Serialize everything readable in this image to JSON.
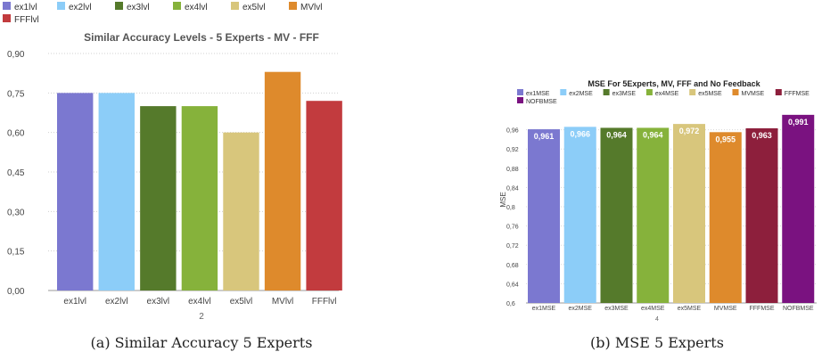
{
  "charts": {
    "left": {
      "caption": "(a) Similar Accuracy 5 Experts",
      "chart_data": {
        "type": "bar",
        "title": "Similar Accuracy Levels - 5 Experts - MV - FFF",
        "xlabel": "2",
        "ylabel": "",
        "ylim": [
          0,
          0.9
        ],
        "yticks": [
          "0,00",
          "0,15",
          "0,30",
          "0,45",
          "0,60",
          "0,75",
          "0,90"
        ],
        "ytick_values": [
          0,
          0.15,
          0.3,
          0.45,
          0.6,
          0.75,
          0.9
        ],
        "categories": [
          "ex1lvl",
          "ex2lvl",
          "ex3lvl",
          "ex4lvl",
          "ex5lvl",
          "MVlvl",
          "FFFlvl"
        ],
        "values": [
          0.75,
          0.75,
          0.7,
          0.7,
          0.6,
          0.83,
          0.72
        ],
        "colors": [
          "#7b78d0",
          "#8ccdf8",
          "#557a2b",
          "#86b23b",
          "#d8c67c",
          "#de8a2c",
          "#c23b3e"
        ],
        "legend": [
          "ex1lvl",
          "ex2lvl",
          "ex3lvl",
          "ex4lvl",
          "ex5lvl",
          "MVlvl",
          "FFFlvl"
        ],
        "legend_position": "top-left",
        "grid": true
      }
    },
    "right": {
      "caption": "(b) MSE 5 Experts",
      "chart_data": {
        "type": "bar",
        "title": "MSE For 5Experts, MV, FFF and No Feedback",
        "xlabel": "4",
        "ylabel": "MSE",
        "ylim": [
          0.6,
          1.0
        ],
        "yticks": [
          "0,6",
          "0,64",
          "0,68",
          "0,72",
          "0,76",
          "0,8",
          "0,84",
          "0,88",
          "0,92",
          "0,96"
        ],
        "ytick_values": [
          0.6,
          0.64,
          0.68,
          0.72,
          0.76,
          0.8,
          0.84,
          0.88,
          0.92,
          0.96
        ],
        "categories": [
          "ex1MSE",
          "ex2MSE",
          "ex3MSE",
          "ex4MSE",
          "ex5MSE",
          "MVMSE",
          "FFFMSE",
          "NOFBMSE"
        ],
        "values": [
          0.961,
          0.966,
          0.964,
          0.964,
          0.972,
          0.955,
          0.963,
          0.991
        ],
        "value_labels": [
          "0,961",
          "0,966",
          "0,964",
          "0,964",
          "0,972",
          "0,955",
          "0,963",
          "0,991"
        ],
        "colors": [
          "#7b78d0",
          "#8ccdf8",
          "#557a2b",
          "#86b23b",
          "#d8c67c",
          "#de8a2c",
          "#8d1f3c",
          "#7a1280"
        ],
        "legend": [
          "ex1MSE",
          "ex2MSE",
          "ex3MSE",
          "ex4MSE",
          "ex5MSE",
          "MVMSE",
          "FFFMSE",
          "NOFBMSE"
        ],
        "legend_position": "top",
        "grid": true
      }
    }
  }
}
